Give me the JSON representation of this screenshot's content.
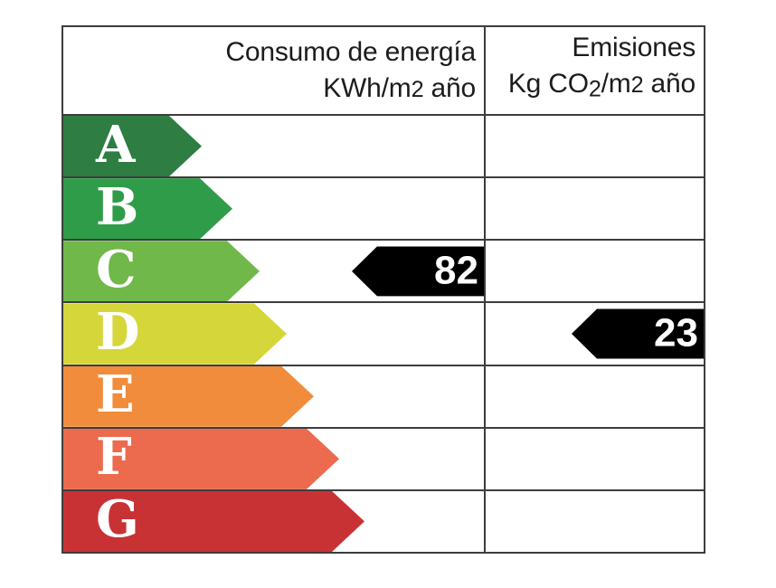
{
  "header": {
    "energy": {
      "title": "Consumo de energía",
      "unit": {
        "p1": "KWh/m",
        "exp": "2",
        "p2": " año"
      }
    },
    "emissions": {
      "title": "Emisiones",
      "unit": {
        "p1": "Kg CO",
        "sub": "2",
        "p2": "/m",
        "exp": "2",
        "p3": " año"
      }
    }
  },
  "chart_data": {
    "type": "bar",
    "columns": [
      "Consumo de energía KWh/m2 año",
      "Emisiones Kg CO2/m2 año"
    ],
    "categories": [
      "A",
      "B",
      "C",
      "D",
      "E",
      "F",
      "G"
    ],
    "ratings": [
      {
        "letter": "A",
        "color": "#2e7d43"
      },
      {
        "letter": "B",
        "color": "#2f9c49"
      },
      {
        "letter": "C",
        "color": "#6fb849"
      },
      {
        "letter": "D",
        "color": "#d5d63a"
      },
      {
        "letter": "E",
        "color": "#f08c3c"
      },
      {
        "letter": "F",
        "color": "#ec6a4e"
      },
      {
        "letter": "G",
        "color": "#c93234"
      },
      {
        "letter": "",
        "color": ""
      }
    ],
    "consumption": {
      "value": 82,
      "rating": "C"
    },
    "emissions": {
      "value": 23,
      "rating": "D"
    },
    "marker_color": "#000000",
    "legend_position": "none",
    "grid": "table-borders"
  }
}
